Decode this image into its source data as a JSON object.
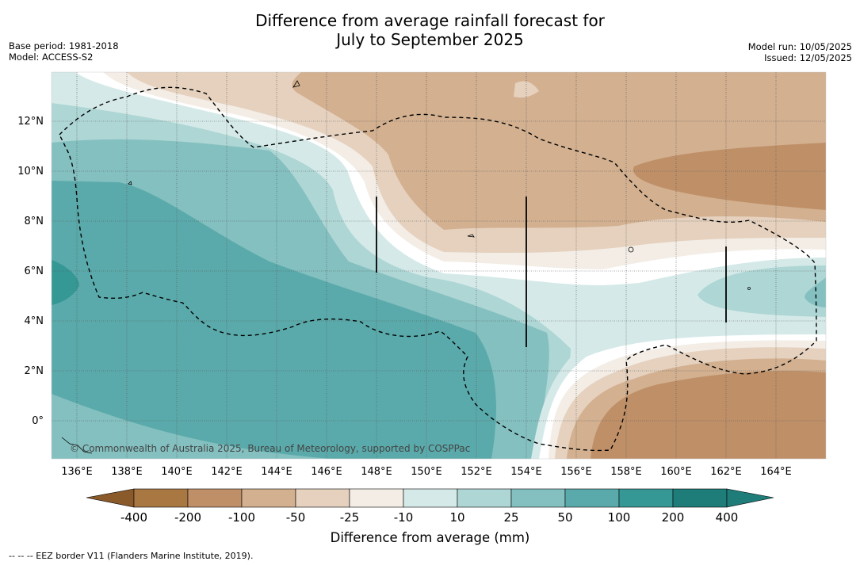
{
  "title_line1": "Difference from average rainfall forecast for",
  "title_line2": "July to September 2025",
  "meta_left": [
    "Base period: 1981-2018",
    "Model: ACCESS-S2"
  ],
  "meta_right": [
    "Model run: 10/05/2025",
    "Issued: 12/05/2025"
  ],
  "lat_labels": [
    "12°N",
    "10°N",
    "8°N",
    "6°N",
    "4°N",
    "2°N",
    "0°"
  ],
  "lon_labels": [
    "136°E",
    "138°E",
    "140°E",
    "142°E",
    "144°E",
    "146°E",
    "148°E",
    "150°E",
    "152°E",
    "154°E",
    "156°E",
    "158°E",
    "160°E",
    "162°E",
    "164°E"
  ],
  "copyright": "© Commonwealth of Australia 2025, Bureau of Meteorology, supported by COSPPac",
  "colorbar": {
    "title": "Difference from average (mm)",
    "labels": [
      "-400",
      "-200",
      "-100",
      "-50",
      "-25",
      "-10",
      "10",
      "25",
      "50",
      "100",
      "200",
      "400"
    ],
    "colors": [
      "#a97741",
      "#bf9068",
      "#d2b090",
      "#e5d1be",
      "#f3ede6",
      "#ffffff",
      "#d5eae8",
      "#aed6d5",
      "#84c0c0",
      "#5baaab",
      "#359895",
      "#1e7c79"
    ]
  },
  "footer": "--  --  -- EEZ border V11 (Flanders Marine Institute, 2019)."
}
